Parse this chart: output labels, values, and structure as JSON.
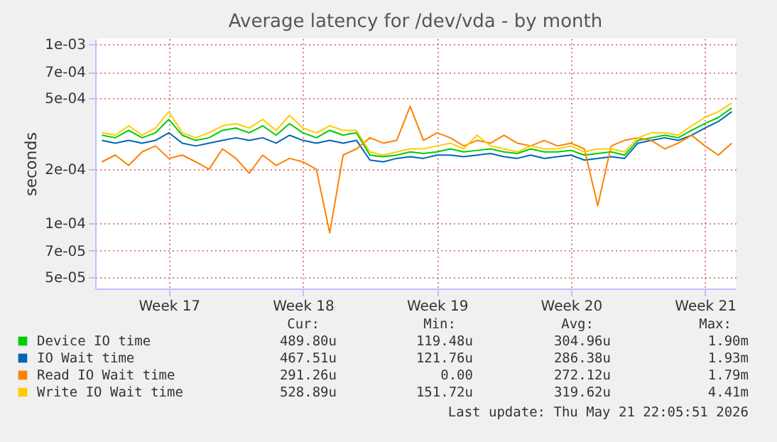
{
  "chart_data": {
    "type": "line",
    "title": "Average latency for /dev/vda - by month",
    "ylabel": "seconds",
    "log": "y",
    "categories": [
      null,
      null,
      null,
      null,
      null,
      "Week 17",
      null,
      null,
      null,
      null,
      null,
      null,
      null,
      null,
      null,
      "Week 18",
      null,
      null,
      null,
      null,
      null,
      null,
      null,
      null,
      null,
      "Week 19",
      null,
      null,
      null,
      null,
      null,
      null,
      null,
      null,
      null,
      "Week 20",
      null,
      null,
      null,
      null,
      null,
      null,
      null,
      null,
      null,
      "Week 21",
      null,
      null
    ],
    "series": [
      {
        "name": "Device IO time",
        "color": "#00cc00",
        "values": [
          0.00031,
          0.0003,
          0.00033,
          0.0003,
          0.00032,
          0.00038,
          0.00031,
          0.00029,
          0.0003,
          0.00033,
          0.00034,
          0.00032,
          0.00035,
          0.00031,
          0.00036,
          0.00032,
          0.0003,
          0.00033,
          0.00031,
          0.00032,
          0.00024,
          0.000235,
          0.00024,
          0.00025,
          0.000245,
          0.00025,
          0.00026,
          0.00025,
          0.000255,
          0.00026,
          0.00025,
          0.000245,
          0.00026,
          0.00025,
          0.00025,
          0.000255,
          0.00024,
          0.000245,
          0.00025,
          0.00024,
          0.00029,
          0.0003,
          0.00031,
          0.0003,
          0.00033,
          0.00036,
          0.00039,
          0.00044
        ]
      },
      {
        "name": "IO Wait time",
        "color": "#0066b3",
        "values": [
          0.00029,
          0.00028,
          0.00029,
          0.00028,
          0.00029,
          0.00032,
          0.00028,
          0.00027,
          0.00028,
          0.00029,
          0.0003,
          0.00029,
          0.0003,
          0.00028,
          0.00031,
          0.00029,
          0.00028,
          0.00029,
          0.00028,
          0.00029,
          0.000225,
          0.00022,
          0.00023,
          0.000235,
          0.00023,
          0.00024,
          0.00024,
          0.000235,
          0.00024,
          0.000245,
          0.000235,
          0.00023,
          0.00024,
          0.00023,
          0.000235,
          0.00024,
          0.000225,
          0.00023,
          0.000235,
          0.00023,
          0.00028,
          0.00029,
          0.0003,
          0.00029,
          0.00031,
          0.00034,
          0.00037,
          0.00042
        ]
      },
      {
        "name": "Read IO Wait time",
        "color": "#ff8000",
        "values": [
          0.00022,
          0.00024,
          0.00021,
          0.00025,
          0.00027,
          0.00023,
          0.00024,
          0.00022,
          0.0002,
          0.00026,
          0.00023,
          0.00019,
          0.00024,
          0.00021,
          0.00023,
          0.00022,
          0.0002,
          8.8e-05,
          0.00024,
          0.00026,
          0.0003,
          0.00028,
          0.00029,
          0.00045,
          0.00029,
          0.00032,
          0.0003,
          0.00027,
          0.00029,
          0.00028,
          0.00031,
          0.00028,
          0.00027,
          0.00029,
          0.00027,
          0.00028,
          0.00026,
          0.000125,
          0.00027,
          0.00029,
          0.0003,
          0.00029,
          0.00026,
          0.00028,
          0.00031,
          0.00027,
          0.00024,
          0.00028
        ]
      },
      {
        "name": "Write IO Wait time",
        "color": "#ffcc00",
        "values": [
          0.00032,
          0.00031,
          0.00035,
          0.00031,
          0.00034,
          0.00042,
          0.00032,
          0.0003,
          0.00032,
          0.00035,
          0.00036,
          0.00034,
          0.00038,
          0.00033,
          0.0004,
          0.00034,
          0.00032,
          0.00035,
          0.00033,
          0.00033,
          0.00025,
          0.00024,
          0.00025,
          0.00026,
          0.00026,
          0.00027,
          0.00028,
          0.00026,
          0.00031,
          0.00027,
          0.00026,
          0.00025,
          0.00027,
          0.00026,
          0.00026,
          0.00027,
          0.00025,
          0.00026,
          0.00026,
          0.00025,
          0.0003,
          0.00032,
          0.00032,
          0.00031,
          0.00035,
          0.00039,
          0.00042,
          0.00047
        ]
      }
    ],
    "ylim": [
      4.3e-05,
      0.00108
    ],
    "yticks": [
      {
        "value": 5e-05,
        "label": "5e-05"
      },
      {
        "value": 7e-05,
        "label": "7e-05"
      },
      {
        "value": 0.0001,
        "label": "1e-04"
      },
      {
        "value": 0.0002,
        "label": "2e-04"
      },
      {
        "value": 0.0005,
        "label": "5e-04"
      },
      {
        "value": 0.0007,
        "label": "7e-04"
      },
      {
        "value": 0.001,
        "label": "1e-03"
      }
    ],
    "grid": true,
    "legend": "bottom",
    "annotations": [
      "Cur:",
      "Min:",
      "Avg:",
      "Max:",
      "489.80u",
      "119.48u",
      "304.96u",
      "1.90m",
      "467.51u",
      "121.76u",
      "286.38u",
      "1.93m",
      "291.26u",
      "0.00",
      "272.12u",
      "1.79m",
      "528.89u",
      "151.72u",
      "319.62u",
      "4.41m",
      "Last update: Thu May 21 22:05:51 2026"
    ]
  }
}
